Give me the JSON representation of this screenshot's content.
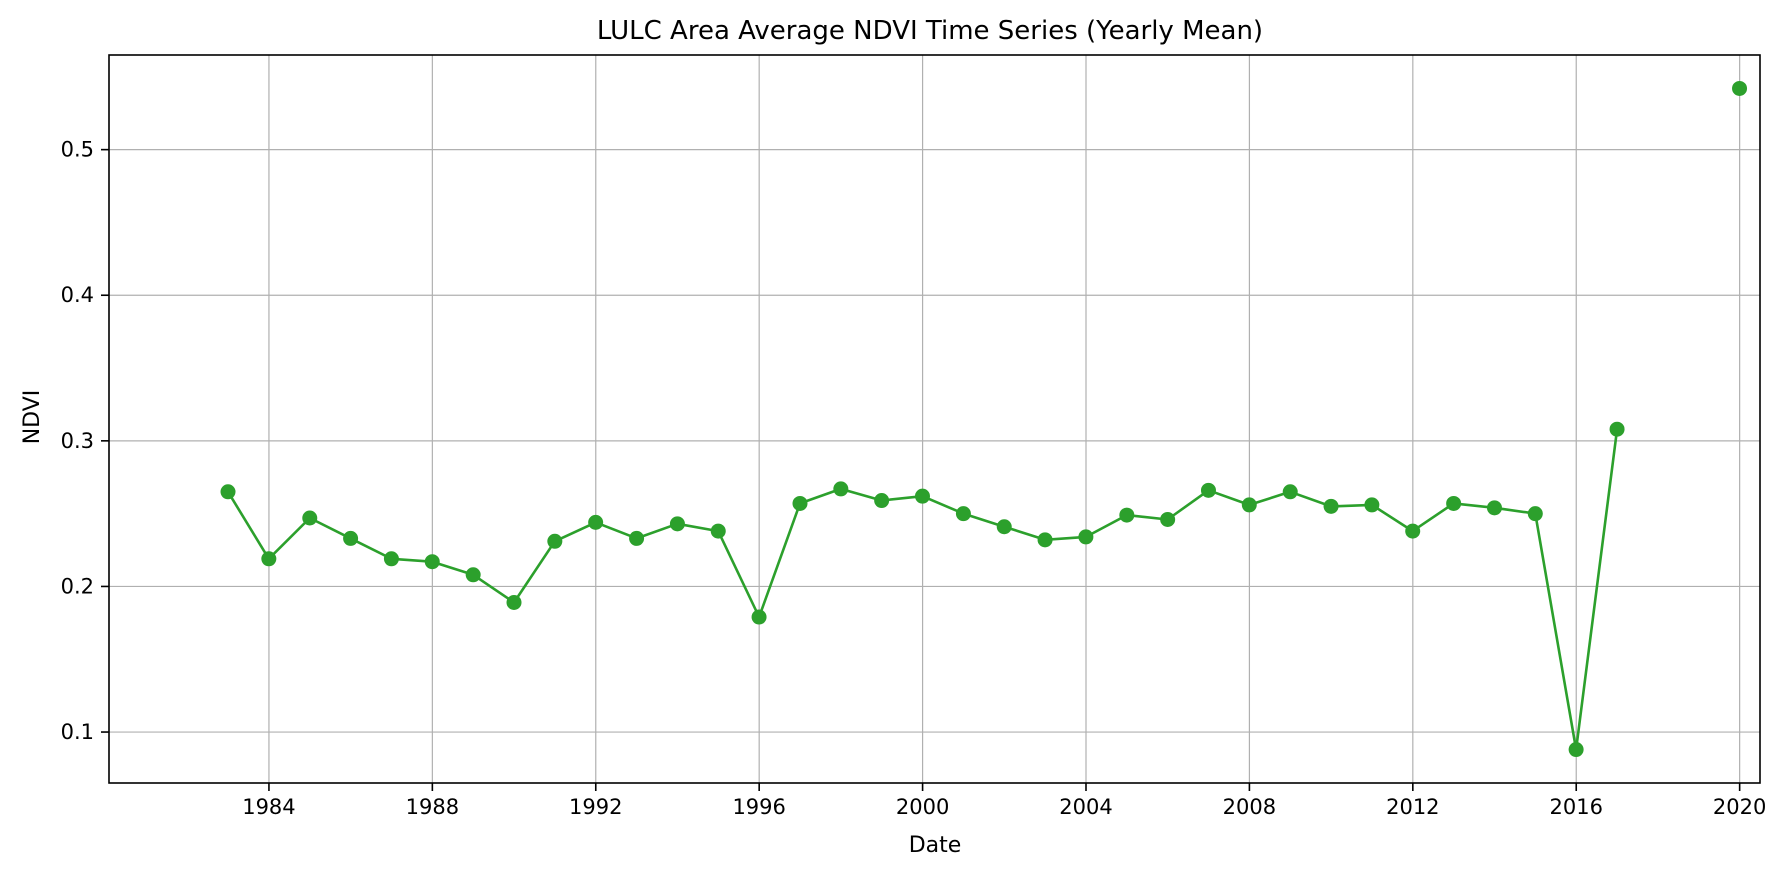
{
  "chart_data": {
    "type": "line",
    "title": "LULC Area Average NDVI Time Series (Yearly Mean)",
    "xlabel": "Date",
    "ylabel": "NDVI",
    "x_axis_type": "date",
    "xlim": [
      "1980-02-01",
      "2020-07-01"
    ],
    "ylim": [
      0.065,
      0.565
    ],
    "xticks": [
      "1984",
      "1988",
      "1992",
      "1996",
      "2000",
      "2004",
      "2008",
      "2012",
      "2016",
      "2020"
    ],
    "yticks": [
      0.1,
      0.2,
      0.3,
      0.4,
      0.5
    ],
    "ytick_labels": [
      "0.1",
      "0.2",
      "0.3",
      "0.4",
      "0.5"
    ],
    "grid": true,
    "series": [
      {
        "color": "#2ca02c",
        "marker": "circle",
        "points": [
          {
            "x": "1982-12-31",
            "y": 0.265
          },
          {
            "x": "1983-12-31",
            "y": 0.219
          },
          {
            "x": "1984-12-31",
            "y": 0.247
          },
          {
            "x": "1985-12-31",
            "y": 0.233
          },
          {
            "x": "1986-12-31",
            "y": 0.219
          },
          {
            "x": "1987-12-31",
            "y": 0.217
          },
          {
            "x": "1988-12-31",
            "y": 0.208
          },
          {
            "x": "1989-12-31",
            "y": 0.189
          },
          {
            "x": "1990-12-31",
            "y": 0.231
          },
          {
            "x": "1991-12-31",
            "y": 0.244
          },
          {
            "x": "1992-12-31",
            "y": 0.233
          },
          {
            "x": "1993-12-31",
            "y": 0.243
          },
          {
            "x": "1994-12-31",
            "y": 0.238
          },
          {
            "x": "1995-12-31",
            "y": 0.179
          },
          {
            "x": "1996-12-31",
            "y": 0.257
          },
          {
            "x": "1997-12-31",
            "y": 0.267
          },
          {
            "x": "1998-12-31",
            "y": 0.259
          },
          {
            "x": "1999-12-31",
            "y": 0.262
          },
          {
            "x": "2000-12-31",
            "y": 0.25
          },
          {
            "x": "2001-12-31",
            "y": 0.241
          },
          {
            "x": "2002-12-31",
            "y": 0.232
          },
          {
            "x": "2003-12-31",
            "y": 0.234
          },
          {
            "x": "2004-12-31",
            "y": 0.249
          },
          {
            "x": "2005-12-31",
            "y": 0.246
          },
          {
            "x": "2006-12-31",
            "y": 0.266
          },
          {
            "x": "2007-12-31",
            "y": 0.256
          },
          {
            "x": "2008-12-31",
            "y": 0.265
          },
          {
            "x": "2009-12-31",
            "y": 0.255
          },
          {
            "x": "2010-12-31",
            "y": 0.256
          },
          {
            "x": "2011-12-31",
            "y": 0.238
          },
          {
            "x": "2012-12-31",
            "y": 0.257
          },
          {
            "x": "2013-12-31",
            "y": 0.254
          },
          {
            "x": "2014-12-31",
            "y": 0.25
          },
          {
            "x": "2015-12-31",
            "y": 0.088
          },
          {
            "x": "2016-12-31",
            "y": 0.308
          },
          {
            "x": "2017-12-31",
            "y": null
          },
          {
            "x": "2018-12-31",
            "y": null
          },
          {
            "x": "2019-12-31",
            "y": 0.542
          }
        ]
      }
    ]
  }
}
